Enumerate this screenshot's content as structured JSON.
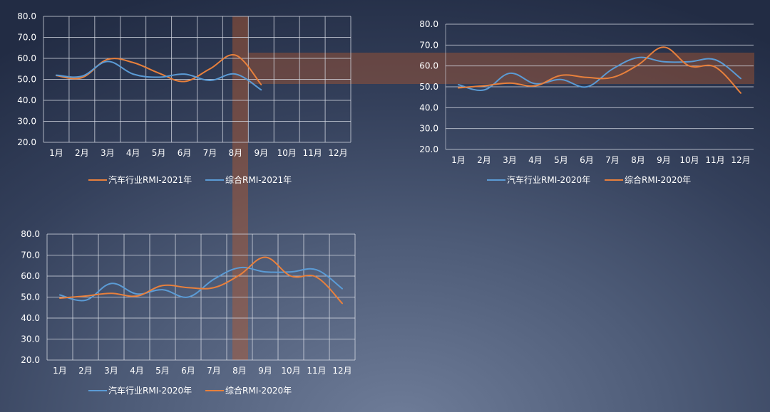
{
  "colors": {
    "orange": "#e8803c",
    "blue": "#5b9bd5",
    "band": "#b85a2e"
  },
  "chart_data": [
    {
      "type": "line",
      "categories": [
        "1月",
        "2月",
        "3月",
        "4月",
        "5月",
        "6月",
        "7月",
        "8月",
        "9月",
        "10月",
        "11月",
        "12月"
      ],
      "ylim": [
        20,
        80
      ],
      "yticks": [
        "20.0",
        "30.0",
        "40.0",
        "50.0",
        "60.0",
        "70.0",
        "80.0"
      ],
      "grid": "both",
      "legend": "bottom",
      "series": [
        {
          "name": "汽车行业RMI-2021年",
          "color": "#e8803c",
          "values": [
            51.8,
            50.8,
            59.5,
            58.0,
            53.0,
            49.0,
            55.0,
            61.5,
            47.5,
            null,
            null,
            null
          ]
        },
        {
          "name": "综合RMI-2021年",
          "color": "#5b9bd5",
          "values": [
            52.0,
            51.5,
            58.5,
            52.5,
            51.0,
            52.5,
            49.5,
            52.5,
            45.0,
            null,
            null,
            null
          ]
        }
      ]
    },
    {
      "type": "line",
      "categories": [
        "1月",
        "2月",
        "3月",
        "4月",
        "5月",
        "6月",
        "7月",
        "8月",
        "9月",
        "10月",
        "11月",
        "12月"
      ],
      "ylim": [
        20,
        80
      ],
      "yticks": [
        "20.0",
        "30.0",
        "40.0",
        "50.0",
        "60.0",
        "70.0",
        "80.0"
      ],
      "grid": "horizontal",
      "legend": "bottom",
      "series": [
        {
          "name": "汽车行业RMI-2020年",
          "color": "#5b9bd5",
          "values": [
            51.0,
            48.5,
            56.5,
            51.5,
            53.5,
            50.0,
            58.5,
            64.0,
            62.0,
            62.0,
            63.0,
            54.0
          ]
        },
        {
          "name": "综合RMI-2020年",
          "color": "#e8803c",
          "values": [
            49.5,
            50.5,
            51.8,
            50.5,
            55.5,
            54.5,
            54.5,
            60.5,
            69.0,
            60.0,
            59.5,
            47.0
          ]
        }
      ]
    },
    {
      "type": "line",
      "categories": [
        "1月",
        "2月",
        "3月",
        "4月",
        "5月",
        "6月",
        "7月",
        "8月",
        "9月",
        "10月",
        "11月",
        "12月"
      ],
      "ylim": [
        20,
        80
      ],
      "yticks": [
        "20.0",
        "30.0",
        "40.0",
        "50.0",
        "60.0",
        "70.0",
        "80.0"
      ],
      "grid": "both",
      "legend": "bottom",
      "series": [
        {
          "name": "汽车行业RMI-2020年",
          "color": "#5b9bd5",
          "values": [
            51.0,
            48.5,
            56.5,
            51.5,
            53.5,
            50.0,
            58.5,
            64.0,
            62.0,
            62.0,
            63.0,
            54.0
          ]
        },
        {
          "name": "综合RMI-2020年",
          "color": "#e8803c",
          "values": [
            49.5,
            50.5,
            51.8,
            50.5,
            55.5,
            54.5,
            54.5,
            60.5,
            69.0,
            60.0,
            59.5,
            47.0
          ]
        }
      ]
    }
  ]
}
